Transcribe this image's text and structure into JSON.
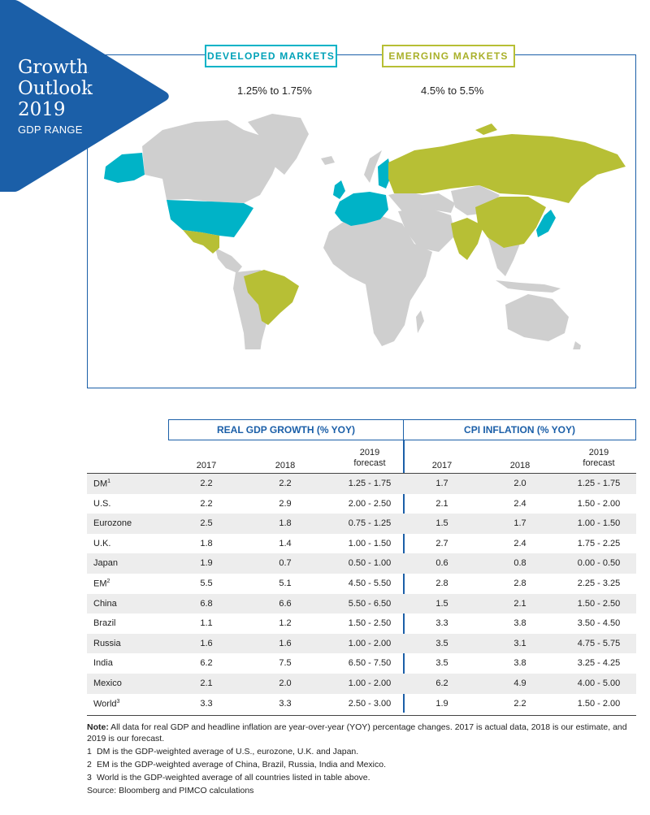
{
  "banner": {
    "title_line1": "Growth",
    "title_line2": "Outlook",
    "title_line3": "2019",
    "subtitle": "GDP RANGE"
  },
  "developed": {
    "label": "DEVELOPED MARKETS",
    "range": "1.25% to 1.75%",
    "color": "#00b3c7"
  },
  "emerging": {
    "label": "EMERGING MARKETS",
    "range": "4.5% to 5.5%",
    "color": "#b7bf35"
  },
  "map_colors": {
    "other": "#cfcfcf",
    "developed": "#00b3c7",
    "emerging": "#b7bf35",
    "frame": "#1b5fa8"
  },
  "table": {
    "group_gdp": "REAL GDP GROWTH (% YOY)",
    "group_cpi": "CPI INFLATION (% YOY)",
    "col_2017": "2017",
    "col_2018": "2018",
    "col_2019_line1": "2019",
    "col_2019_line2": "forecast",
    "rows": [
      {
        "label": "DM",
        "sup": "1",
        "gdp": [
          "2.2",
          "2.2",
          "1.25 - 1.75"
        ],
        "cpi": [
          "1.7",
          "2.0",
          "1.25 - 1.75"
        ]
      },
      {
        "label": "U.S.",
        "sup": "",
        "gdp": [
          "2.2",
          "2.9",
          "2.00 - 2.50"
        ],
        "cpi": [
          "2.1",
          "2.4",
          "1.50 - 2.00"
        ]
      },
      {
        "label": "Eurozone",
        "sup": "",
        "gdp": [
          "2.5",
          "1.8",
          "0.75 - 1.25"
        ],
        "cpi": [
          "1.5",
          "1.7",
          "1.00 - 1.50"
        ]
      },
      {
        "label": "U.K.",
        "sup": "",
        "gdp": [
          "1.8",
          "1.4",
          "1.00 - 1.50"
        ],
        "cpi": [
          "2.7",
          "2.4",
          "1.75 - 2.25"
        ]
      },
      {
        "label": "Japan",
        "sup": "",
        "gdp": [
          "1.9",
          "0.7",
          "0.50 - 1.00"
        ],
        "cpi": [
          "0.6",
          "0.8",
          "0.00 - 0.50"
        ]
      },
      {
        "label": "EM",
        "sup": "2",
        "gdp": [
          "5.5",
          "5.1",
          "4.50 - 5.50"
        ],
        "cpi": [
          "2.8",
          "2.8",
          "2.25 - 3.25"
        ]
      },
      {
        "label": "China",
        "sup": "",
        "gdp": [
          "6.8",
          "6.6",
          "5.50 - 6.50"
        ],
        "cpi": [
          "1.5",
          "2.1",
          "1.50 - 2.50"
        ]
      },
      {
        "label": "Brazil",
        "sup": "",
        "gdp": [
          "1.1",
          "1.2",
          "1.50 - 2.50"
        ],
        "cpi": [
          "3.3",
          "3.8",
          "3.50 - 4.50"
        ]
      },
      {
        "label": "Russia",
        "sup": "",
        "gdp": [
          "1.6",
          "1.6",
          "1.00 - 2.00"
        ],
        "cpi": [
          "3.5",
          "3.1",
          "4.75 - 5.75"
        ]
      },
      {
        "label": "India",
        "sup": "",
        "gdp": [
          "6.2",
          "7.5",
          "6.50 - 7.50"
        ],
        "cpi": [
          "3.5",
          "3.8",
          "3.25 - 4.25"
        ]
      },
      {
        "label": "Mexico",
        "sup": "",
        "gdp": [
          "2.1",
          "2.0",
          "1.00 - 2.00"
        ],
        "cpi": [
          "6.2",
          "4.9",
          "4.00 - 5.00"
        ]
      },
      {
        "label": "World",
        "sup": "3",
        "gdp": [
          "3.3",
          "3.3",
          "2.50 - 3.00"
        ],
        "cpi": [
          "1.9",
          "2.2",
          "1.50 - 2.00"
        ]
      }
    ]
  },
  "notes": {
    "note_label": "Note:",
    "note_text": " All data for real GDP and headline inflation are year-over-year (YOY) percentage changes. 2017 is actual data, 2018 is our estimate, and 2019 is our forecast.",
    "footnotes": [
      {
        "num": "1",
        "text": "DM is the GDP-weighted average of U.S., eurozone, U.K. and Japan."
      },
      {
        "num": "2",
        "text": "EM is the GDP-weighted average of China, Brazil, Russia, India and Mexico."
      },
      {
        "num": "3",
        "text": "World is the GDP-weighted average of all countries listed in table above."
      }
    ],
    "source": "Source: Bloomberg and PIMCO calculations"
  }
}
